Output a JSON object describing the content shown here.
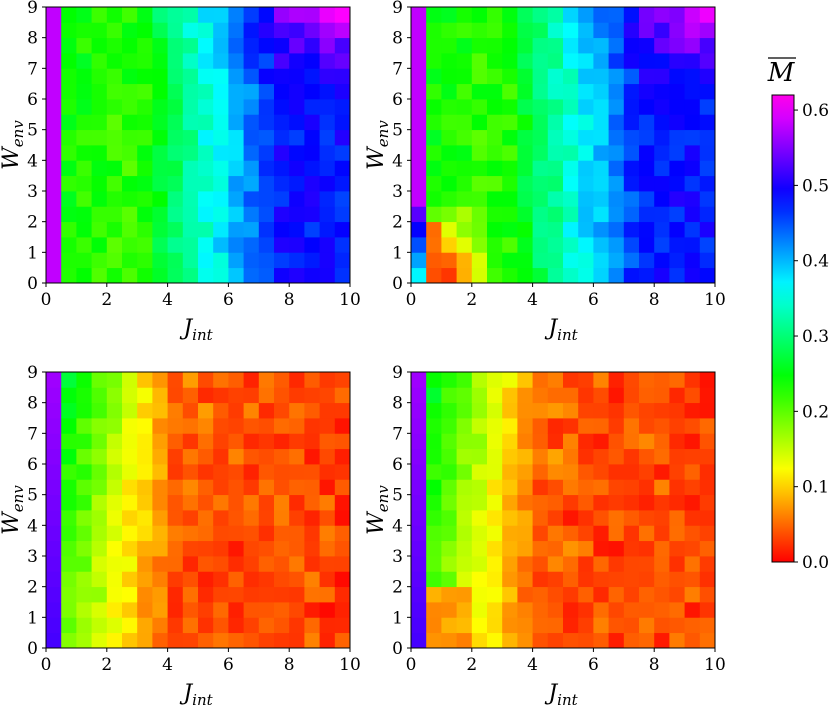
{
  "chart_data": {
    "type": "heatmap",
    "layout": "2x2 grid of heatmaps with shared colorbar",
    "colormap": "gist_rainbow-like (red=0.0 to magenta=0.6)",
    "xlabel": {
      "main": "J",
      "sub": "int"
    },
    "ylabel": {
      "main": "W",
      "sub": "env"
    },
    "xlim": [
      0,
      10
    ],
    "ylim": [
      0,
      9
    ],
    "xticks": [
      "0",
      "2",
      "4",
      "6",
      "8",
      "10"
    ],
    "yticks": [
      "0",
      "1",
      "2",
      "3",
      "4",
      "5",
      "6",
      "7",
      "8",
      "9"
    ],
    "grid": {
      "nx": 20,
      "ny": 18
    },
    "colorbar": {
      "label": "M",
      "overline": true,
      "range": [
        0.0,
        0.62
      ],
      "ticks": [
        "0.0",
        "0.1",
        "0.2",
        "0.3",
        "0.4",
        "0.5",
        "0.6"
      ]
    },
    "panels": [
      {
        "position": "top-left",
        "seed": 11,
        "low_left_red": false,
        "saturation_value": 0.5
      },
      {
        "position": "top-right",
        "seed": 23,
        "low_left_red": true,
        "saturation_value": 0.5
      },
      {
        "position": "bottom-left",
        "seed": 37,
        "low_left_red": false,
        "saturation_value": 0.02
      },
      {
        "position": "bottom-right",
        "seed": 53,
        "low_left_red": false,
        "saturation_value": 0.02
      }
    ]
  }
}
